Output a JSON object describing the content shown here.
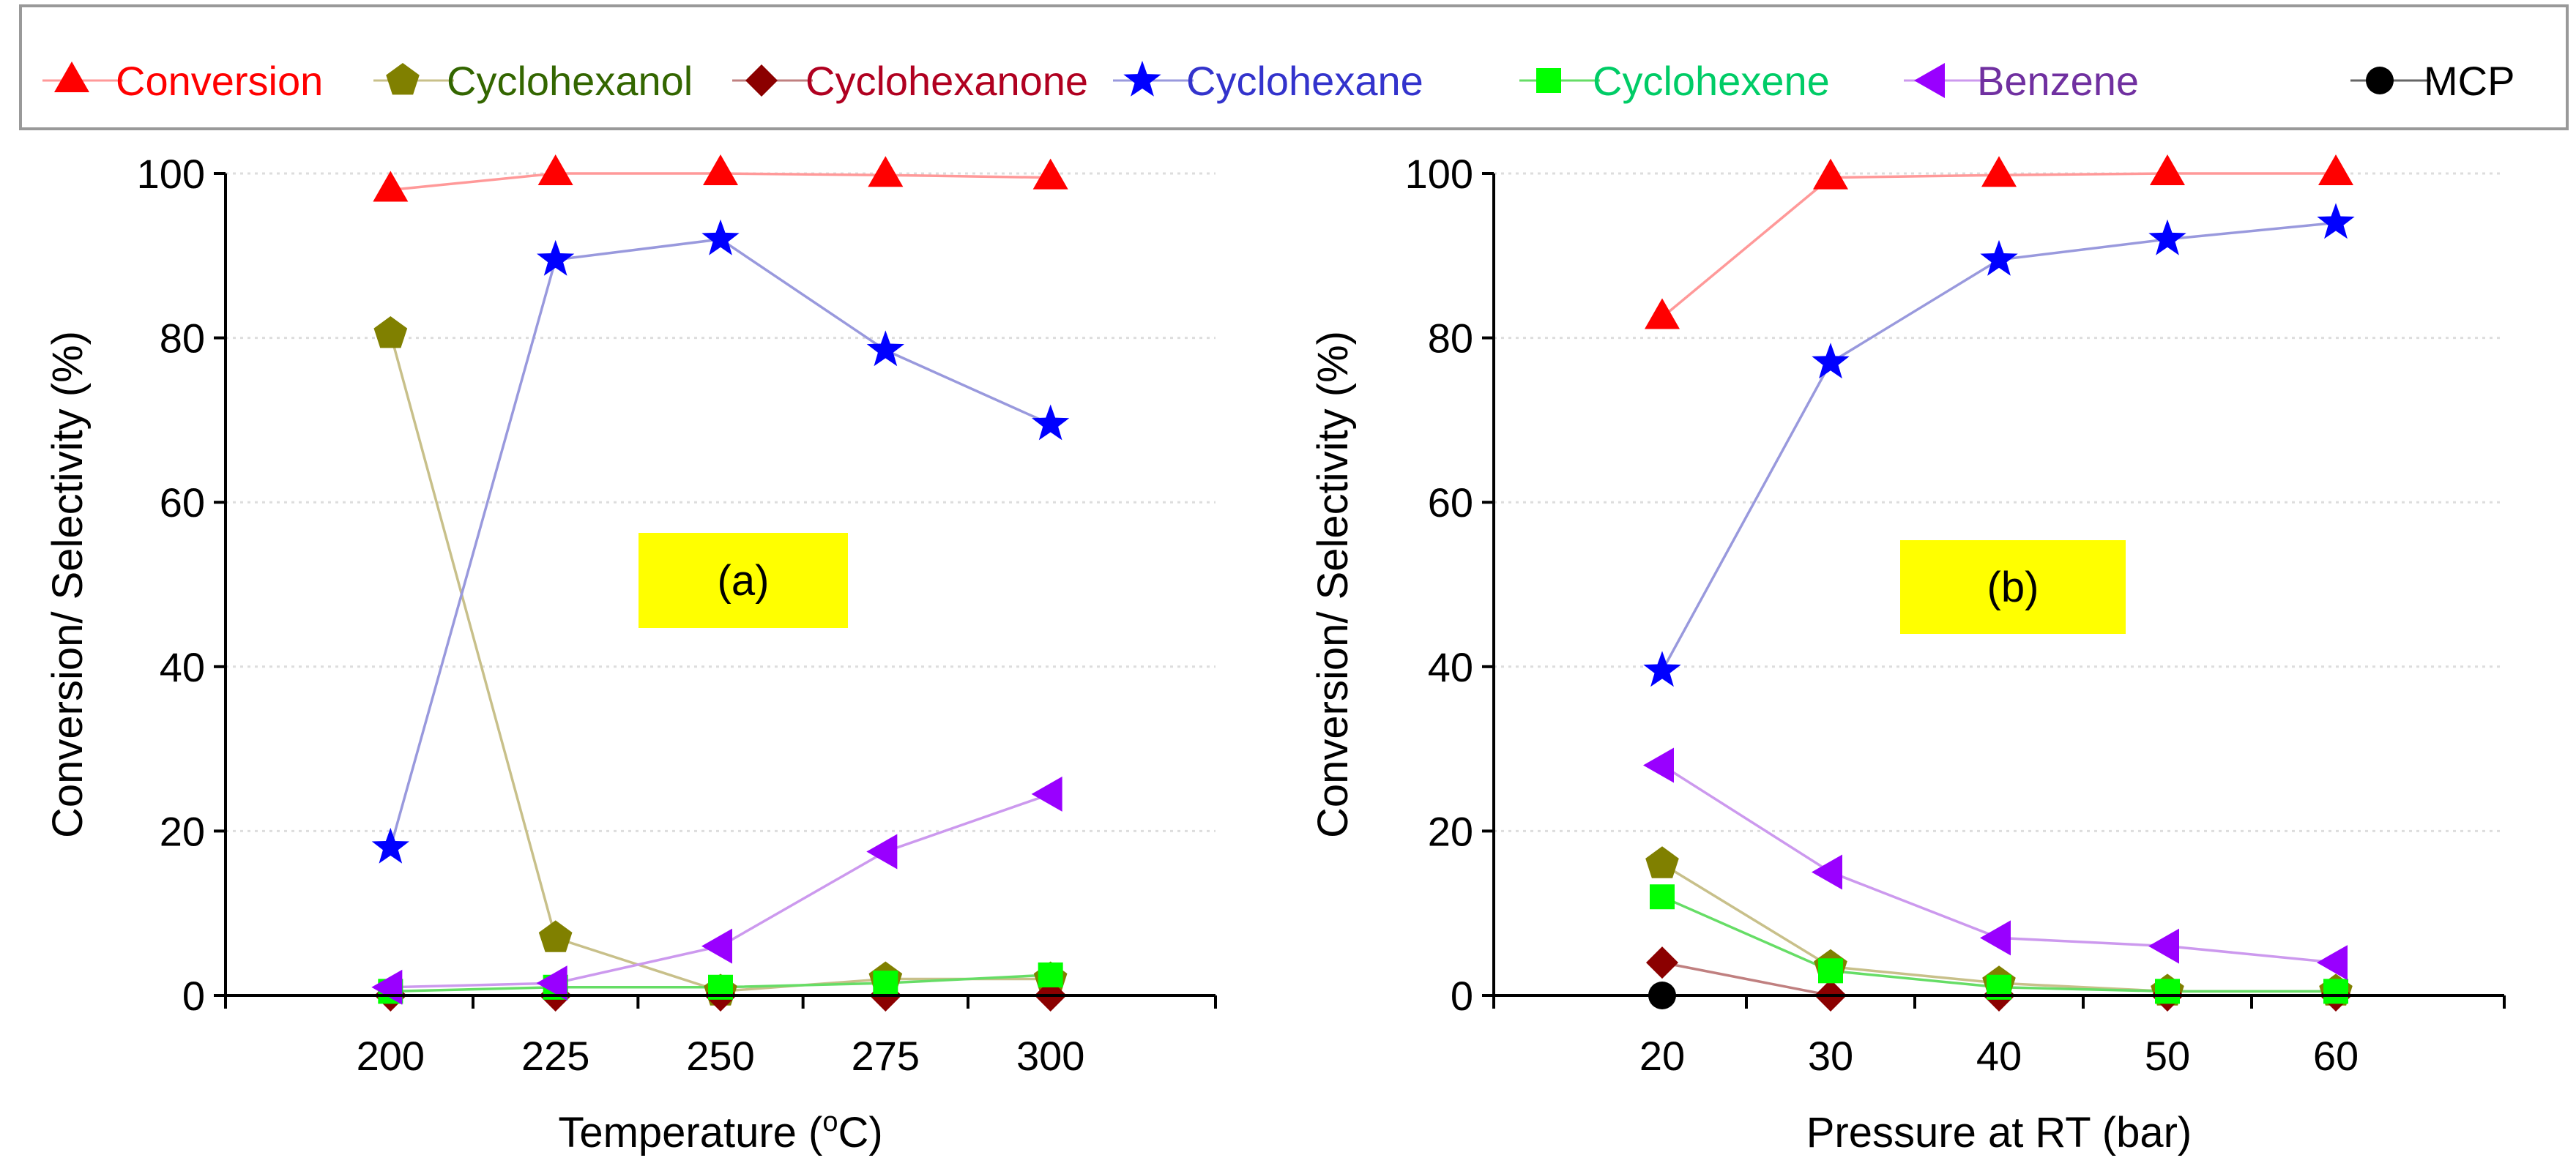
{
  "legend": [
    {
      "name": "Conversion",
      "color": "#ff0000",
      "marker": "triangle-up"
    },
    {
      "name": "Cyclohexanol",
      "color": "#808000",
      "marker": "pentagon"
    },
    {
      "name": "Cyclohexanone",
      "color": "#8b0000",
      "marker": "diamond"
    },
    {
      "name": "Cyclohexane",
      "color": "#0000ff",
      "marker": "star"
    },
    {
      "name": "Cyclohexene",
      "color": "#00ff00",
      "marker": "square"
    },
    {
      "name": "Benzene",
      "color": "#9900ff",
      "marker": "triangle-left"
    },
    {
      "name": "MCP",
      "color": "#000000",
      "marker": "circle"
    }
  ],
  "legend_text_colors": {
    "Conversion": "#ff0000",
    "Cyclohexanol": "#336600",
    "Cyclohexanone": "#b00020",
    "Cyclohexane": "#3333cc",
    "Cyclohexene": "#00cc66",
    "Benzene": "#7030a0",
    "MCP": "#000000"
  },
  "line_colors": {
    "Conversion": "#ff9999",
    "Cyclohexanol": "#c8c08a",
    "Cyclohexanone": "#c08080",
    "Cyclohexane": "#9999dd",
    "Cyclohexene": "#66dd66",
    "Benzene": "#cc99ee",
    "MCP": "#666666"
  },
  "chart_data": [
    {
      "type": "line",
      "label": "(a)",
      "xlabel_prefix": "Temperature (",
      "xlabel_sup": "o",
      "xlabel_suffix": "C)",
      "ylabel": "Conversion/ Selectivity (%)",
      "x": [
        200,
        225,
        250,
        275,
        300
      ],
      "xlim": [
        175,
        325
      ],
      "ylim": [
        0,
        100
      ],
      "yticks": [
        0,
        20,
        40,
        60,
        80,
        100
      ],
      "xticks": [
        200,
        225,
        250,
        275,
        300
      ],
      "series": [
        {
          "name": "Conversion",
          "values": [
            98,
            100,
            100,
            99.8,
            99.5
          ]
        },
        {
          "name": "Cyclohexanol",
          "values": [
            80.5,
            7,
            0.5,
            2,
            2
          ]
        },
        {
          "name": "Cyclohexanone",
          "values": [
            0,
            0,
            0,
            0,
            0
          ]
        },
        {
          "name": "Cyclohexane",
          "values": [
            18,
            89.5,
            92,
            78.5,
            69.5
          ]
        },
        {
          "name": "Cyclohexene",
          "values": [
            0.5,
            1,
            1,
            1.5,
            2.5
          ]
        },
        {
          "name": "Benzene",
          "values": [
            1,
            1.5,
            6,
            17.5,
            24.5
          ]
        }
      ]
    },
    {
      "type": "line",
      "label": "(b)",
      "xlabel_prefix": "Pressure at RT (bar)",
      "xlabel_sup": "",
      "xlabel_suffix": "",
      "ylabel": "Conversion/ Selectivity (%)",
      "x": [
        20,
        30,
        40,
        50,
        60
      ],
      "xlim": [
        10,
        70
      ],
      "ylim": [
        0,
        100
      ],
      "yticks": [
        0,
        20,
        40,
        60,
        80,
        100
      ],
      "xticks": [
        20,
        30,
        40,
        50,
        60
      ],
      "series": [
        {
          "name": "Conversion",
          "values": [
            82.5,
            99.5,
            99.8,
            100,
            100
          ]
        },
        {
          "name": "Cyclohexanol",
          "values": [
            16,
            3.5,
            1.5,
            0.5,
            0.5
          ]
        },
        {
          "name": "Cyclohexanone",
          "values": [
            4,
            0,
            0,
            0,
            0
          ]
        },
        {
          "name": "Cyclohexane",
          "values": [
            39.5,
            77,
            89.5,
            92,
            94
          ]
        },
        {
          "name": "Cyclohexene",
          "values": [
            12,
            3,
            1,
            0.5,
            0.5
          ]
        },
        {
          "name": "Benzene",
          "values": [
            28,
            15,
            7,
            6,
            4
          ]
        },
        {
          "name": "MCP",
          "values": [
            0,
            null,
            null,
            null,
            null
          ]
        }
      ]
    }
  ]
}
